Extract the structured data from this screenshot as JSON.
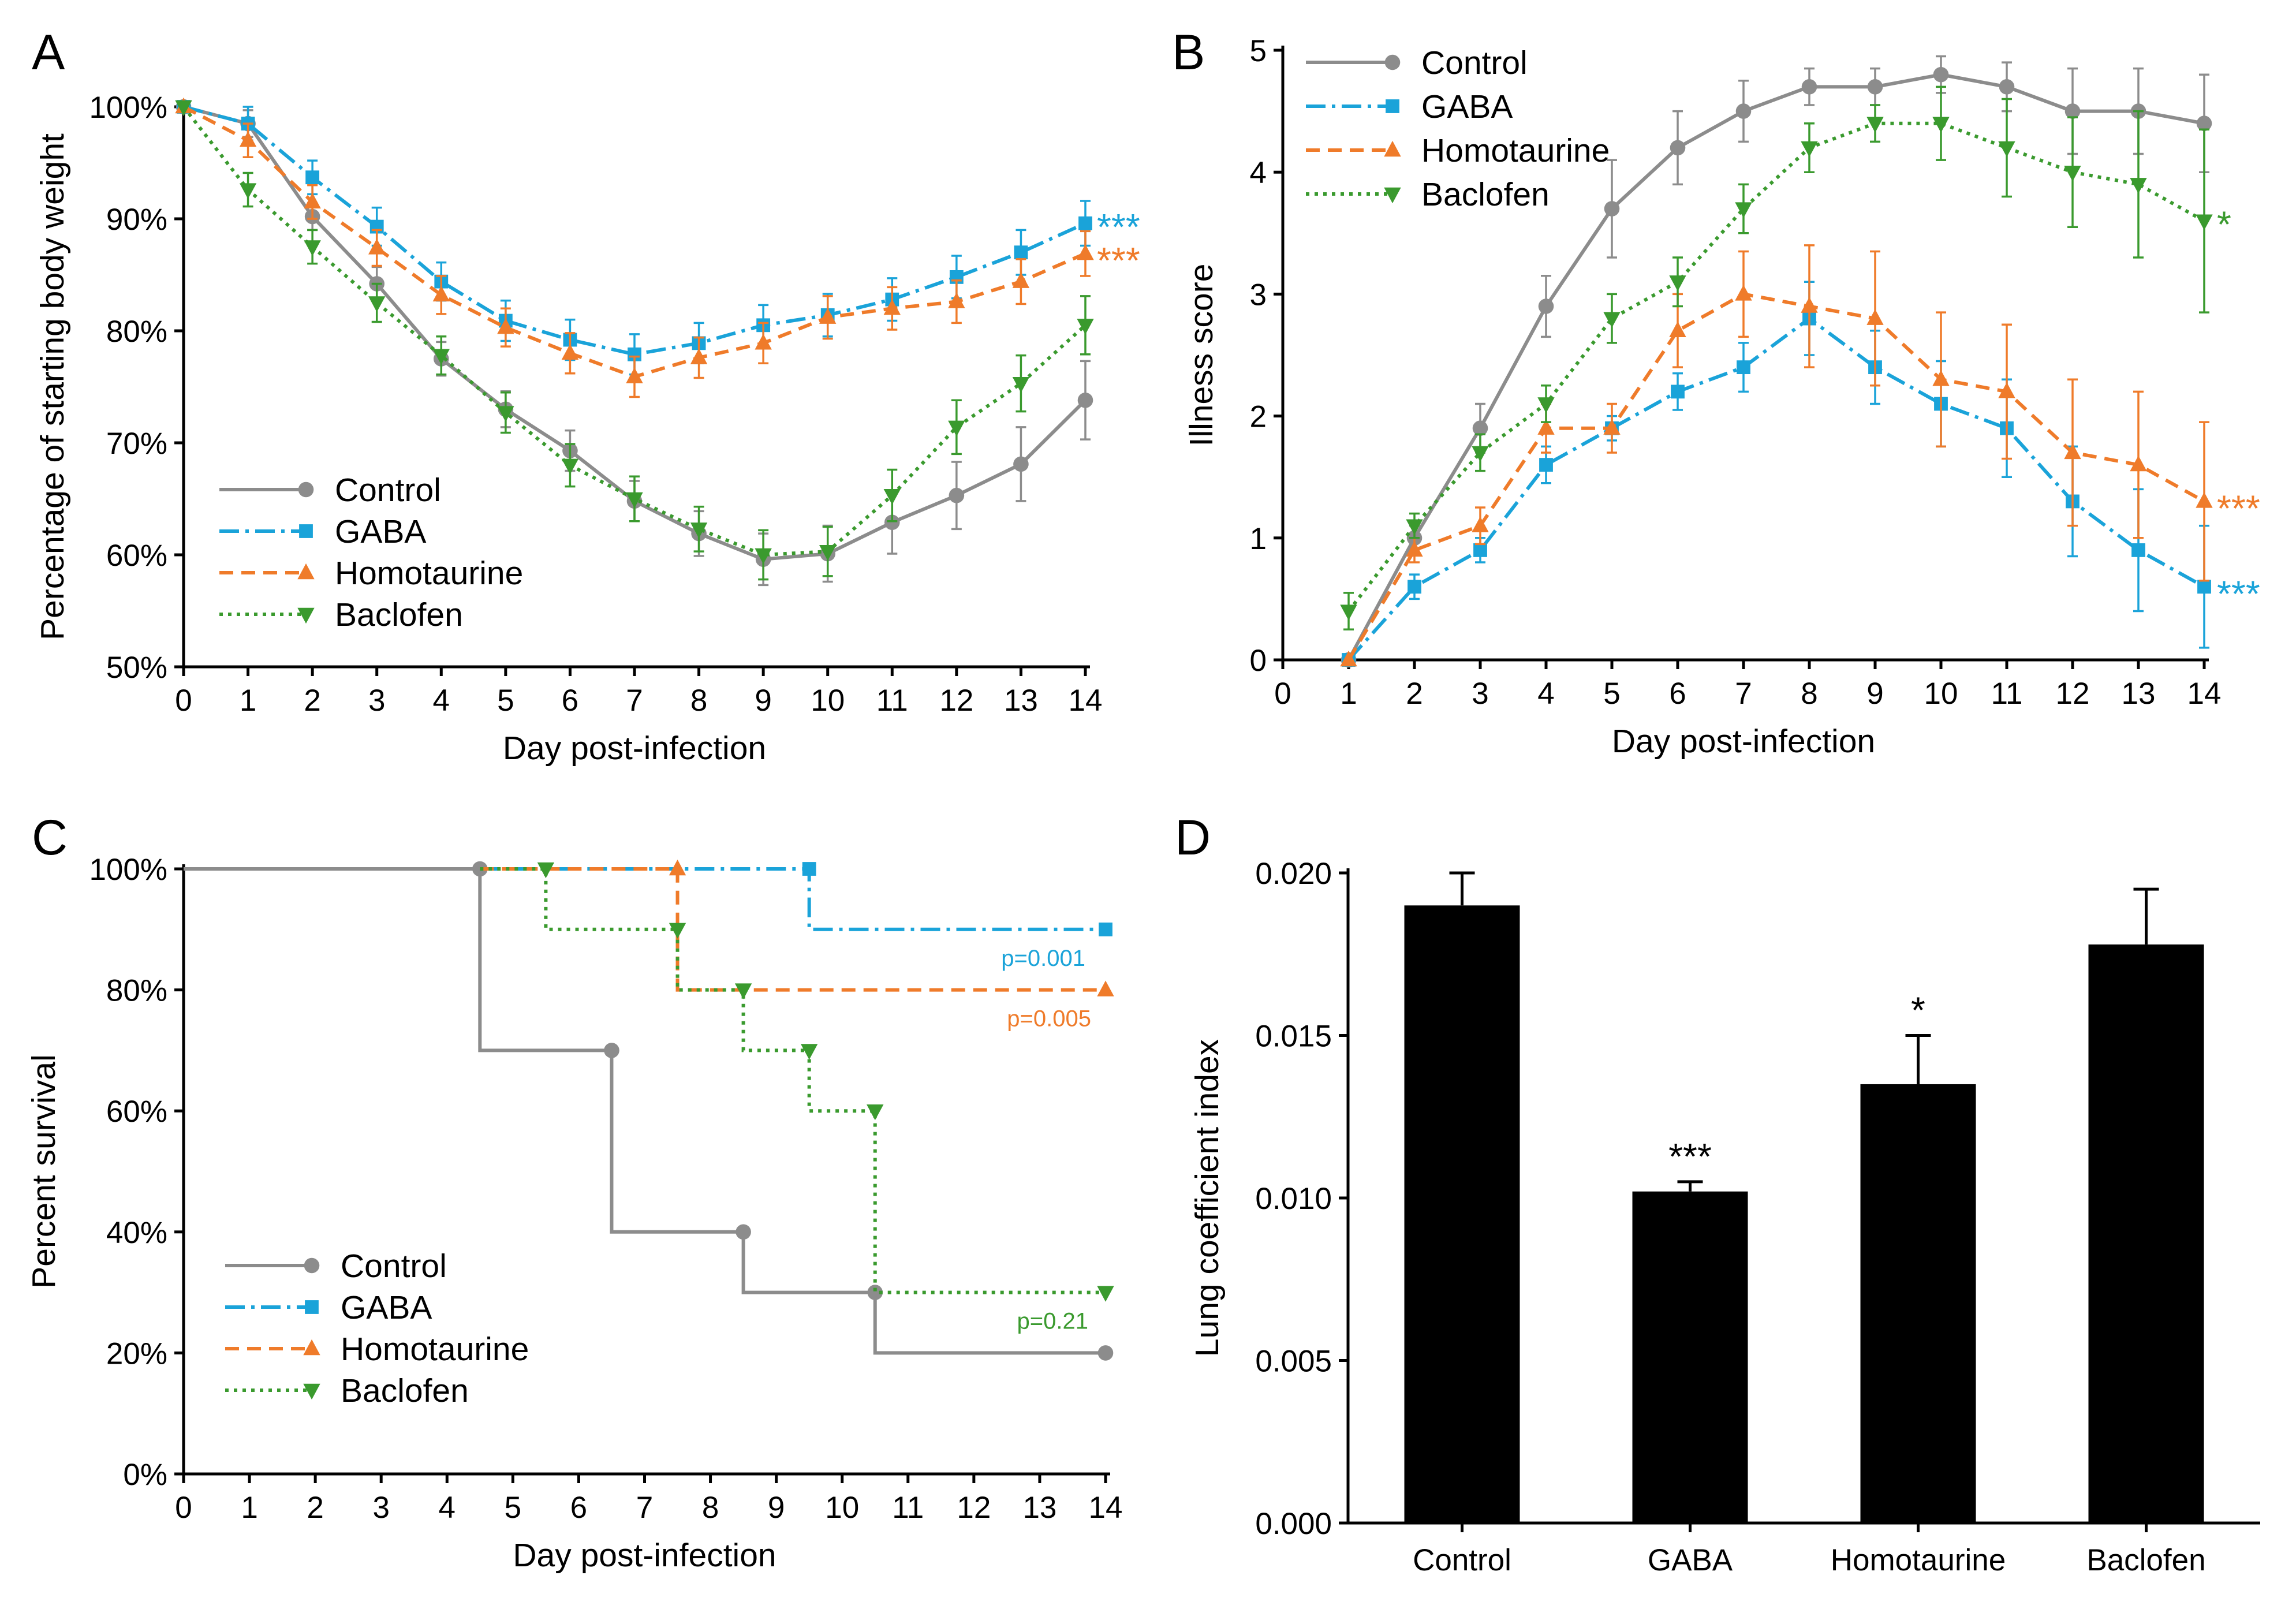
{
  "colors": {
    "Control": "#8c8c8c",
    "GABA": "#1aa3d9",
    "Homotaurine": "#ef7b2a",
    "Baclofen": "#3a9a2e",
    "bar": "#000000"
  },
  "icons": {
    "Control": "circle-marker",
    "GABA": "square-marker",
    "Homotaurine": "triangle-up-marker",
    "Baclofen": "triangle-down-marker"
  },
  "chart_data": [
    {
      "panel": "A",
      "type": "line",
      "title": "",
      "xlabel": "Day post-infection",
      "ylabel": "Percentage of starting body weight",
      "x": [
        0,
        1,
        2,
        3,
        4,
        5,
        6,
        7,
        8,
        9,
        10,
        11,
        12,
        13,
        14
      ],
      "xlim": [
        0,
        14
      ],
      "ylim": [
        50,
        100
      ],
      "yticks": [
        50,
        60,
        70,
        80,
        90,
        100
      ],
      "ytick_labels": [
        "50%",
        "60%",
        "70%",
        "80%",
        "90%",
        "100%"
      ],
      "xtick_labels": [
        "0",
        "1",
        "2",
        "3",
        "4",
        "5",
        "6",
        "7",
        "8",
        "9",
        "10",
        "11",
        "12",
        "13",
        "14"
      ],
      "legend": [
        "Control",
        "GABA",
        "Homotaurine",
        "Baclofen"
      ],
      "legend_position": "bottom-left",
      "series": [
        {
          "name": "Control",
          "style": "solid",
          "marker": "circle",
          "values": [
            100,
            98.5,
            90.2,
            84.2,
            77.5,
            73,
            69.3,
            64.8,
            61.9,
            59.6,
            60.1,
            62.9,
            65.3,
            68.1,
            73.8
          ],
          "errors": [
            0,
            1.2,
            1.2,
            1.5,
            1.5,
            1.6,
            1.8,
            1.8,
            2,
            2.3,
            2.5,
            2.8,
            3,
            3.3,
            3.5
          ]
        },
        {
          "name": "GABA",
          "style": "dashdot",
          "marker": "square",
          "values": [
            100,
            98.5,
            93.7,
            89.3,
            84.4,
            80.9,
            79.2,
            77.9,
            78.9,
            80.5,
            81.4,
            82.8,
            84.8,
            87,
            89.6
          ],
          "errors": [
            0,
            1.5,
            1.5,
            1.7,
            1.7,
            1.8,
            1.8,
            1.8,
            1.8,
            1.8,
            1.9,
            1.9,
            1.9,
            2,
            2
          ]
        },
        {
          "name": "Homotaurine",
          "style": "dashed",
          "marker": "triangle-up",
          "values": [
            100,
            97,
            91.5,
            87.4,
            83.2,
            80.3,
            78,
            75.9,
            77.6,
            78.9,
            81.2,
            82,
            82.6,
            84.4,
            86.9
          ],
          "errors": [
            0,
            1.5,
            1.5,
            1.6,
            1.7,
            1.7,
            1.8,
            1.8,
            1.8,
            1.8,
            1.9,
            1.9,
            1.9,
            2,
            2
          ]
        },
        {
          "name": "Baclofen",
          "style": "dotted",
          "marker": "triangle-down",
          "values": [
            100,
            92.6,
            87.5,
            82.5,
            77.8,
            72.7,
            68,
            65,
            62.3,
            60,
            60.3,
            65.3,
            71.4,
            75.3,
            80.5
          ],
          "errors": [
            0,
            1.5,
            1.5,
            1.7,
            1.7,
            1.8,
            1.9,
            2,
            2,
            2.2,
            2.2,
            2.3,
            2.4,
            2.5,
            2.6
          ]
        }
      ],
      "annotations": [
        {
          "text": "***",
          "series": "GABA"
        },
        {
          "text": "***",
          "series": "Homotaurine"
        }
      ]
    },
    {
      "panel": "B",
      "type": "line",
      "title": "",
      "xlabel": "Day post-infection",
      "ylabel": "Illness score",
      "x": [
        1,
        2,
        3,
        4,
        5,
        6,
        7,
        8,
        9,
        10,
        11,
        12,
        13,
        14
      ],
      "xlim": [
        0,
        14
      ],
      "ylim": [
        0,
        5
      ],
      "yticks": [
        0,
        1,
        2,
        3,
        4,
        5
      ],
      "ytick_labels": [
        "0",
        "1",
        "2",
        "3",
        "4",
        "5"
      ],
      "xtick_labels": [
        "0",
        "1",
        "2",
        "3",
        "4",
        "5",
        "6",
        "7",
        "8",
        "9",
        "10",
        "11",
        "12",
        "13",
        "14"
      ],
      "legend": [
        "Control",
        "GABA",
        "Homotaurine",
        "Baclofen"
      ],
      "legend_position": "top-left",
      "series": [
        {
          "name": "Control",
          "style": "solid",
          "marker": "circle",
          "values": [
            0,
            1,
            1.9,
            2.9,
            3.7,
            4.2,
            4.5,
            4.7,
            4.7,
            4.8,
            4.7,
            4.5,
            4.5,
            4.4
          ],
          "errors": [
            0,
            0.1,
            0.2,
            0.25,
            0.4,
            0.3,
            0.25,
            0.15,
            0.15,
            0.15,
            0.2,
            0.35,
            0.35,
            0.4
          ]
        },
        {
          "name": "GABA",
          "style": "dashdot",
          "marker": "square",
          "values": [
            0,
            0.6,
            0.9,
            1.6,
            1.9,
            2.2,
            2.4,
            2.8,
            2.4,
            2.1,
            1.9,
            1.3,
            0.9,
            0.6
          ],
          "errors": [
            0,
            0.1,
            0.1,
            0.15,
            0.1,
            0.15,
            0.2,
            0.3,
            0.3,
            0.35,
            0.4,
            0.45,
            0.5,
            0.5
          ]
        },
        {
          "name": "Homotaurine",
          "style": "dashed",
          "marker": "triangle-up",
          "values": [
            0,
            0.9,
            1.1,
            1.9,
            1.9,
            2.7,
            3,
            2.9,
            2.8,
            2.3,
            2.2,
            1.7,
            1.6,
            1.3
          ],
          "errors": [
            0,
            0.1,
            0.15,
            0.2,
            0.2,
            0.3,
            0.35,
            0.5,
            0.55,
            0.55,
            0.55,
            0.6,
            0.6,
            0.65
          ]
        },
        {
          "name": "Baclofen",
          "style": "dotted",
          "marker": "triangle-down",
          "values": [
            0.4,
            1.1,
            1.7,
            2.1,
            2.8,
            3.1,
            3.7,
            4.2,
            4.4,
            4.4,
            4.2,
            4,
            3.9,
            3.6
          ],
          "errors": [
            0.15,
            0.1,
            0.15,
            0.15,
            0.2,
            0.2,
            0.2,
            0.2,
            0.15,
            0.3,
            0.4,
            0.45,
            0.6,
            0.75
          ]
        }
      ],
      "annotations": [
        {
          "text": "*",
          "series": "Baclofen"
        },
        {
          "text": "***",
          "series": "Homotaurine"
        },
        {
          "text": "***",
          "series": "GABA"
        }
      ]
    },
    {
      "panel": "C",
      "type": "line",
      "subtype": "survival-step",
      "title": "",
      "xlabel": "Day post-infection",
      "ylabel": "Percent survival",
      "xlim": [
        0,
        14
      ],
      "ylim": [
        0,
        100
      ],
      "yticks": [
        0,
        20,
        40,
        60,
        80,
        100
      ],
      "ytick_labels": [
        "0%",
        "20%",
        "40%",
        "60%",
        "80%",
        "100%"
      ],
      "xtick_labels": [
        "0",
        "1",
        "2",
        "3",
        "4",
        "5",
        "6",
        "7",
        "8",
        "9",
        "10",
        "11",
        "12",
        "13",
        "14"
      ],
      "legend": [
        "Control",
        "GABA",
        "Homotaurine",
        "Baclofen"
      ],
      "legend_position": "bottom-left",
      "series": [
        {
          "name": "Control",
          "style": "solid",
          "marker": "circle",
          "x": [
            0,
            4.5,
            4.5,
            6.5,
            6.5,
            8.5,
            8.5,
            10.5,
            10.5,
            14
          ],
          "y": [
            100,
            100,
            70,
            70,
            40,
            40,
            30,
            30,
            20,
            20
          ],
          "marker_x": [
            4.5,
            6.5,
            8.5,
            10.5,
            14
          ],
          "marker_y": [
            100,
            70,
            40,
            30,
            20
          ]
        },
        {
          "name": "GABA",
          "style": "dashdot",
          "marker": "square",
          "x": [
            4.5,
            9.5,
            9.5,
            14
          ],
          "y": [
            100,
            100,
            90,
            90
          ],
          "marker_x": [
            9.5,
            14
          ],
          "marker_y": [
            100,
            90
          ]
        },
        {
          "name": "Homotaurine",
          "style": "dashed",
          "marker": "triangle-up",
          "x": [
            4.5,
            7.5,
            7.5,
            14
          ],
          "y": [
            100,
            100,
            80,
            80
          ],
          "marker_x": [
            7.5,
            14
          ],
          "marker_y": [
            100,
            80
          ]
        },
        {
          "name": "Baclofen",
          "style": "dotted",
          "marker": "triangle-down",
          "x": [
            4.5,
            5.5,
            5.5,
            7.5,
            7.5,
            8.5,
            8.5,
            9.5,
            9.5,
            10.5,
            10.5,
            14
          ],
          "y": [
            100,
            100,
            90,
            90,
            80,
            80,
            70,
            70,
            60,
            60,
            30,
            30
          ],
          "marker_x": [
            5.5,
            7.5,
            8.5,
            9.5,
            10.5,
            14
          ],
          "marker_y": [
            100,
            90,
            80,
            70,
            60,
            30
          ]
        }
      ],
      "annotations": [
        {
          "text": "p=0.001",
          "series": "GABA"
        },
        {
          "text": "p=0.005",
          "series": "Homotaurine"
        },
        {
          "text": "p=0.21",
          "series": "Baclofen"
        }
      ]
    },
    {
      "panel": "D",
      "type": "bar",
      "title": "",
      "xlabel": "",
      "ylabel": "Lung coefficient index",
      "categories": [
        "Control",
        "GABA",
        "Homotaurine",
        "Baclofen"
      ],
      "values": [
        0.019,
        0.0102,
        0.0135,
        0.0178
      ],
      "errors": [
        0.001,
        0.0003,
        0.0015,
        0.0017
      ],
      "ylim": [
        0,
        0.02
      ],
      "yticks": [
        0,
        0.005,
        0.01,
        0.015,
        0.02
      ],
      "ytick_labels": [
        "0.000",
        "0.005",
        "0.010",
        "0.015",
        "0.020"
      ],
      "significance": [
        "",
        "***",
        "*",
        ""
      ]
    }
  ]
}
